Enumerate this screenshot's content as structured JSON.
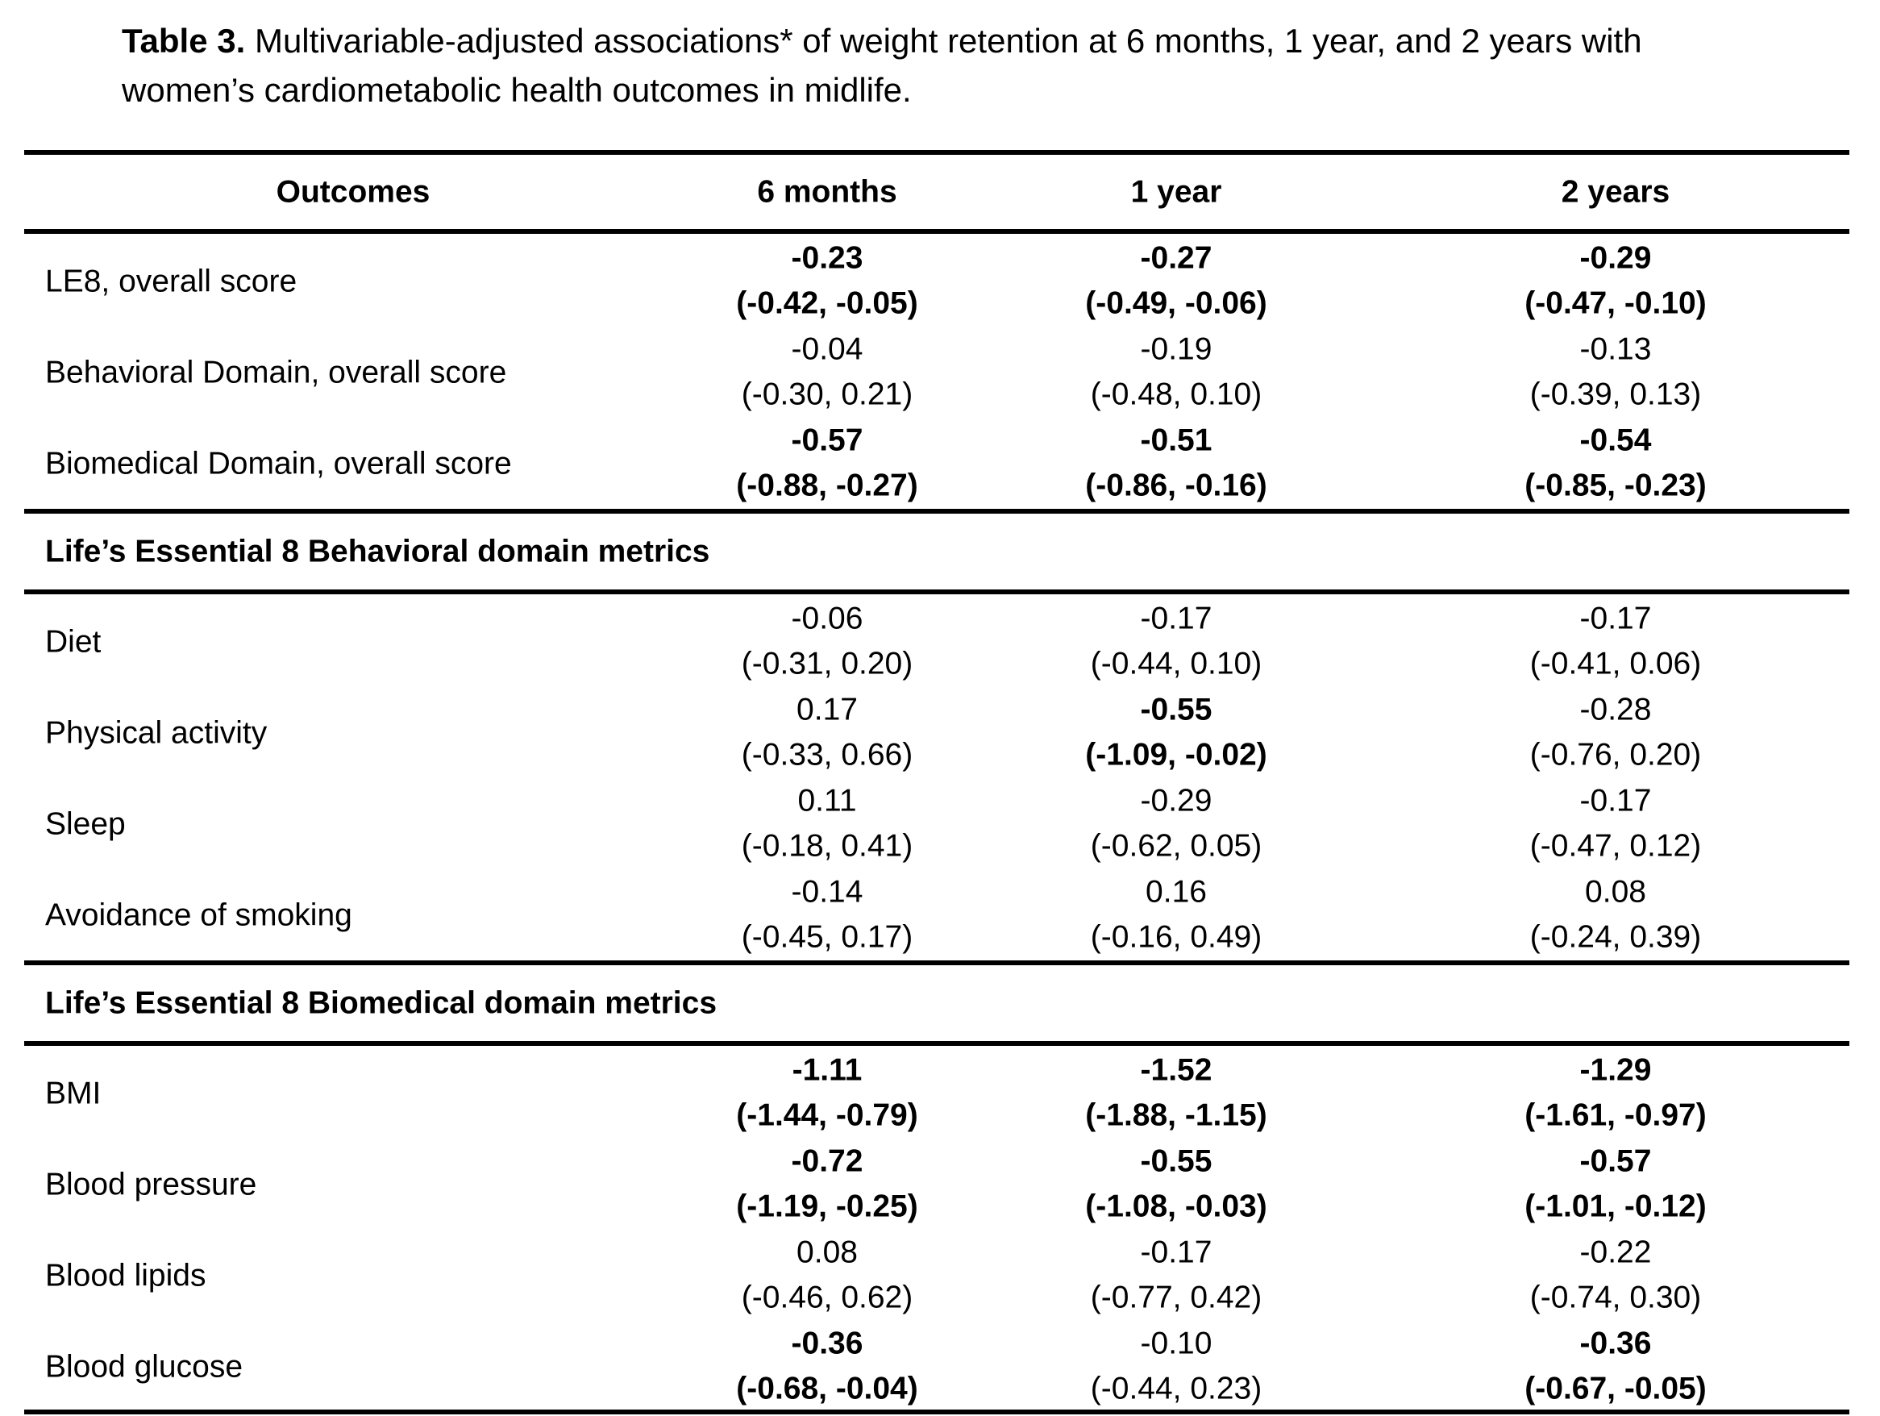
{
  "caption": {
    "label": "Table 3.",
    "text": "Multivariable-adjusted associations* of weight retention at 6 months, 1 year, and 2 years with women’s cardiometabolic health outcomes in midlife."
  },
  "table": {
    "columns": [
      "Outcomes",
      "6 months",
      "1 year",
      "2 years"
    ],
    "groups": [
      {
        "rows": [
          {
            "label": "LE8, overall score",
            "cells": [
              {
                "estimate": "-0.23",
                "ci": "(-0.42, -0.05)",
                "bold": true
              },
              {
                "estimate": "-0.27",
                "ci": "(-0.49, -0.06)",
                "bold": true
              },
              {
                "estimate": "-0.29",
                "ci": "(-0.47, -0.10)",
                "bold": true
              }
            ]
          },
          {
            "label": "Behavioral Domain, overall score",
            "cells": [
              {
                "estimate": "-0.04",
                "ci": "(-0.30, 0.21)",
                "bold": false
              },
              {
                "estimate": "-0.19",
                "ci": "(-0.48, 0.10)",
                "bold": false
              },
              {
                "estimate": "-0.13",
                "ci": "(-0.39, 0.13)",
                "bold": false
              }
            ]
          },
          {
            "label": "Biomedical Domain, overall score",
            "cells": [
              {
                "estimate": "-0.57",
                "ci": "(-0.88, -0.27)",
                "bold": true
              },
              {
                "estimate": "-0.51",
                "ci": "(-0.86, -0.16)",
                "bold": true
              },
              {
                "estimate": "-0.54",
                "ci": "(-0.85, -0.23)",
                "bold": true
              }
            ]
          }
        ]
      },
      {
        "heading": "Life’s Essential 8 Behavioral domain metrics",
        "rows": [
          {
            "label": "Diet",
            "cells": [
              {
                "estimate": "-0.06",
                "ci": "(-0.31, 0.20)",
                "bold": false
              },
              {
                "estimate": "-0.17",
                "ci": "(-0.44, 0.10)",
                "bold": false
              },
              {
                "estimate": "-0.17",
                "ci": "(-0.41, 0.06)",
                "bold": false
              }
            ]
          },
          {
            "label": "Physical activity",
            "cells": [
              {
                "estimate": "0.17",
                "ci": "(-0.33, 0.66)",
                "bold": false
              },
              {
                "estimate": "-0.55",
                "ci": "(-1.09, -0.02)",
                "bold": true
              },
              {
                "estimate": "-0.28",
                "ci": "(-0.76, 0.20)",
                "bold": false
              }
            ]
          },
          {
            "label": "Sleep",
            "cells": [
              {
                "estimate": "0.11",
                "ci": "(-0.18, 0.41)",
                "bold": false
              },
              {
                "estimate": "-0.29",
                "ci": "(-0.62, 0.05)",
                "bold": false
              },
              {
                "estimate": "-0.17",
                "ci": "(-0.47, 0.12)",
                "bold": false
              }
            ]
          },
          {
            "label": "Avoidance of smoking",
            "cells": [
              {
                "estimate": "-0.14",
                "ci": "(-0.45, 0.17)",
                "bold": false
              },
              {
                "estimate": "0.16",
                "ci": "(-0.16, 0.49)",
                "bold": false
              },
              {
                "estimate": "0.08",
                "ci": "(-0.24, 0.39)",
                "bold": false
              }
            ]
          }
        ]
      },
      {
        "heading": "Life’s Essential 8 Biomedical domain metrics",
        "rows": [
          {
            "label": "BMI",
            "cells": [
              {
                "estimate": "-1.11",
                "ci": "(-1.44, -0.79)",
                "bold": true
              },
              {
                "estimate": "-1.52",
                "ci": "(-1.88, -1.15)",
                "bold": true
              },
              {
                "estimate": "-1.29",
                "ci": "(-1.61, -0.97)",
                "bold": true
              }
            ]
          },
          {
            "label": "Blood pressure",
            "cells": [
              {
                "estimate": "-0.72",
                "ci": "(-1.19, -0.25)",
                "bold": true
              },
              {
                "estimate": "-0.55",
                "ci": "(-1.08, -0.03)",
                "bold": true
              },
              {
                "estimate": "-0.57",
                "ci": "(-1.01, -0.12)",
                "bold": true
              }
            ]
          },
          {
            "label": "Blood lipids",
            "cells": [
              {
                "estimate": "0.08",
                "ci": "(-0.46, 0.62)",
                "bold": false
              },
              {
                "estimate": "-0.17",
                "ci": "(-0.77, 0.42)",
                "bold": false
              },
              {
                "estimate": "-0.22",
                "ci": "(-0.74, 0.30)",
                "bold": false
              }
            ]
          },
          {
            "label": "Blood glucose",
            "cells": [
              {
                "estimate": "-0.36",
                "ci": "(-0.68, -0.04)",
                "bold": true
              },
              {
                "estimate": "-0.10",
                "ci": "(-0.44, 0.23)",
                "bold": false
              },
              {
                "estimate": "-0.36",
                "ci": "(-0.67, -0.05)",
                "bold": true
              }
            ]
          }
        ]
      }
    ]
  }
}
